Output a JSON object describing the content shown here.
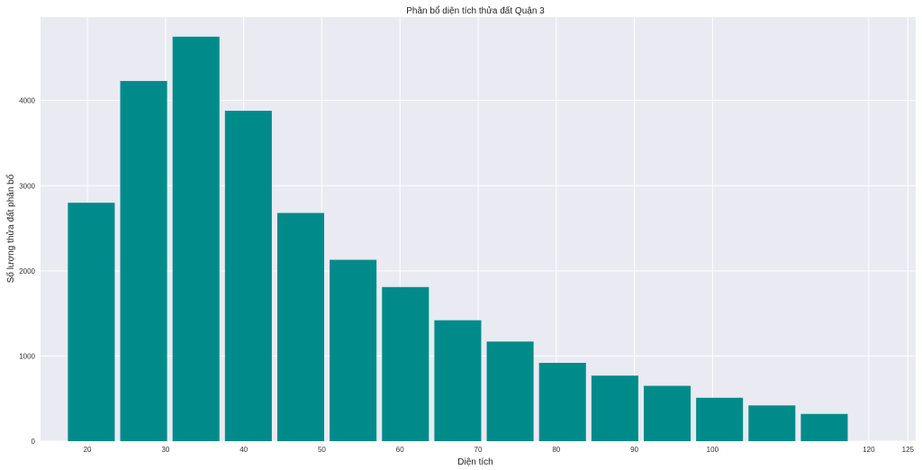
{
  "chart_data": {
    "type": "bar",
    "title": "Phân bổ diện tích thửa đất Quận 3",
    "xlabel": "Diện tích",
    "ylabel": "Số lượng thửa đất phân bổ",
    "xlim": [
      14,
      126
    ],
    "ylim": [
      0,
      4980
    ],
    "grid": true,
    "bar_color": "#008b8b",
    "background_color": "#eaeaf2",
    "grid_color": "#ffffff",
    "x_ticks": [
      20,
      30,
      40,
      50,
      60,
      70,
      80,
      90,
      100,
      120,
      125
    ],
    "y_ticks": [
      0,
      1000,
      2000,
      3000,
      4000
    ],
    "bars": [
      {
        "x_start": 17.5,
        "x_end": 23.5,
        "value": 2800
      },
      {
        "x_start": 24.2,
        "x_end": 30.2,
        "value": 4230
      },
      {
        "x_start": 30.9,
        "x_end": 36.9,
        "value": 4750
      },
      {
        "x_start": 37.6,
        "x_end": 43.6,
        "value": 3880
      },
      {
        "x_start": 44.3,
        "x_end": 50.3,
        "value": 2680
      },
      {
        "x_start": 51.0,
        "x_end": 57.0,
        "value": 2130
      },
      {
        "x_start": 57.7,
        "x_end": 63.7,
        "value": 1810
      },
      {
        "x_start": 64.4,
        "x_end": 70.4,
        "value": 1420
      },
      {
        "x_start": 71.1,
        "x_end": 77.1,
        "value": 1170
      },
      {
        "x_start": 77.8,
        "x_end": 83.8,
        "value": 920
      },
      {
        "x_start": 84.5,
        "x_end": 90.5,
        "value": 770
      },
      {
        "x_start": 91.2,
        "x_end": 97.2,
        "value": 650
      },
      {
        "x_start": 97.9,
        "x_end": 103.9,
        "value": 510
      },
      {
        "x_start": 104.6,
        "x_end": 110.6,
        "value": 420
      },
      {
        "x_start": 111.3,
        "x_end": 117.3,
        "value": 320
      }
    ]
  }
}
